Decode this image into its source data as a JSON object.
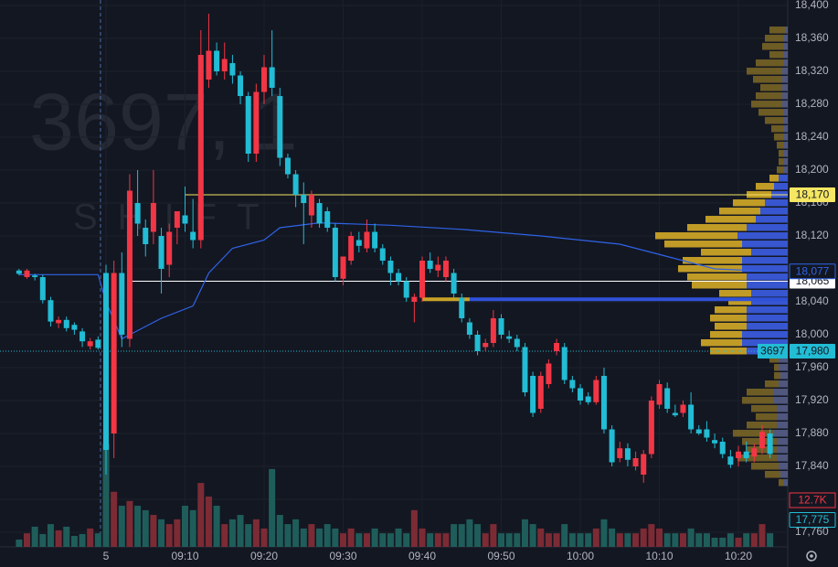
{
  "chart_data": {
    "type": "candlestick",
    "watermark": {
      "title": "3697, 1",
      "subtitle": "SHIFT"
    },
    "up_color": "#f23645",
    "down_color": "#22bcd4",
    "up_volume_color": "#7c2b35",
    "down_volume_color": "#1f5d5a",
    "xlim": [
      -2.41,
      97.24
    ],
    "ylim": [
      17742.2,
      18406.7
    ],
    "vlim": [
      0,
      148900
    ],
    "grid": true,
    "xticks": [
      {
        "value": 11,
        "label": "5"
      },
      {
        "value": 21,
        "label": "09:10"
      },
      {
        "value": 31,
        "label": "09:20"
      },
      {
        "value": 41,
        "label": "09:30"
      },
      {
        "value": 51,
        "label": "09:40"
      },
      {
        "value": 61,
        "label": "09:50"
      },
      {
        "value": 71,
        "label": "10:00"
      },
      {
        "value": 81,
        "label": "10:10"
      },
      {
        "value": 91,
        "label": "10:20"
      }
    ],
    "yticks": [
      {
        "value": 18400,
        "label": "18,400"
      },
      {
        "value": 18360,
        "label": "18,360"
      },
      {
        "value": 18320,
        "label": "18,320"
      },
      {
        "value": 18280,
        "label": "18,280"
      },
      {
        "value": 18240,
        "label": "18,240"
      },
      {
        "value": 18200,
        "label": "18,200"
      },
      {
        "value": 18160,
        "label": "18,160"
      },
      {
        "value": 18120,
        "label": "18,120"
      },
      {
        "value": 18080,
        "label": "18,080"
      },
      {
        "value": 18040,
        "label": "18,040"
      },
      {
        "value": 18000,
        "label": "18,000"
      },
      {
        "value": 17960,
        "label": "17,960"
      },
      {
        "value": 17920,
        "label": "17,920"
      },
      {
        "value": 17880,
        "label": "17,880"
      },
      {
        "value": 17840,
        "label": "17,840"
      },
      {
        "value": 17800,
        "label": "17,800"
      },
      {
        "value": 17760,
        "label": "17,760"
      }
    ],
    "session_break": 10.3,
    "candles": [
      [
        18078,
        18080,
        18072,
        18074,
        2000
      ],
      [
        18070,
        18080,
        18068,
        18078,
        3700
      ],
      [
        18072,
        18074,
        18066,
        18070,
        5500
      ],
      [
        18070,
        18073,
        18038,
        18042,
        3500
      ],
      [
        18042,
        18046,
        18010,
        18016,
        6200
      ],
      [
        18014,
        18022,
        18008,
        18018,
        4500
      ],
      [
        18018,
        18022,
        18004,
        18008,
        5500
      ],
      [
        18012,
        18015,
        18000,
        18006,
        3000
      ],
      [
        18004,
        18008,
        17985,
        17992,
        3500
      ],
      [
        17986,
        17996,
        17982,
        17992,
        5000
      ],
      [
        17994,
        17998,
        17982,
        17984,
        3700
      ],
      [
        18075,
        18085,
        17830,
        17860,
        28100
      ],
      [
        17880,
        18090,
        17850,
        18075,
        15000
      ],
      [
        18075,
        18100,
        17985,
        18000,
        11200
      ],
      [
        17995,
        18195,
        17985,
        18175,
        12500
      ],
      [
        18160,
        18200,
        18120,
        18135,
        11200
      ],
      [
        18130,
        18140,
        18095,
        18110,
        10000
      ],
      [
        18125,
        18200,
        18110,
        18160,
        8700
      ],
      [
        18120,
        18130,
        18050,
        18080,
        7500
      ],
      [
        18085,
        18135,
        18070,
        18125,
        6200
      ],
      [
        18130,
        18150,
        18110,
        18150,
        7500
      ],
      [
        18145,
        18180,
        18125,
        18135,
        11200
      ],
      [
        18125,
        18165,
        18105,
        18115,
        10000
      ],
      [
        18115,
        18370,
        18105,
        18340,
        17400
      ],
      [
        18310,
        18390,
        18300,
        18345,
        13700
      ],
      [
        18345,
        18355,
        18315,
        18320,
        11200
      ],
      [
        18320,
        18355,
        18310,
        18335,
        6200
      ],
      [
        18330,
        18340,
        18305,
        18315,
        7500
      ],
      [
        18315,
        18320,
        18280,
        18290,
        8700
      ],
      [
        18290,
        18295,
        18210,
        18220,
        6200
      ],
      [
        18220,
        18305,
        18210,
        18295,
        7500
      ],
      [
        18295,
        18340,
        18280,
        18325,
        5000
      ],
      [
        18325,
        18370,
        18290,
        18300,
        21200
      ],
      [
        18290,
        18300,
        18205,
        18215,
        8700
      ],
      [
        18215,
        18220,
        18190,
        18195,
        6200
      ],
      [
        18195,
        18200,
        18155,
        18170,
        7500
      ],
      [
        18170,
        18185,
        18110,
        18160,
        5000
      ],
      [
        18145,
        18175,
        18130,
        18170,
        6200
      ],
      [
        18160,
        18165,
        18130,
        18135,
        5000
      ],
      [
        18150,
        18155,
        18125,
        18130,
        6200
      ],
      [
        18130,
        18135,
        18065,
        18070,
        5000
      ],
      [
        18068,
        18095,
        18060,
        18095,
        3700
      ],
      [
        18090,
        18125,
        18085,
        18120,
        5000
      ],
      [
        18115,
        18125,
        18100,
        18108,
        3700
      ],
      [
        18105,
        18140,
        18100,
        18125,
        3700
      ],
      [
        18125,
        18135,
        18100,
        18105,
        5000
      ],
      [
        18105,
        18110,
        18085,
        18090,
        3700
      ],
      [
        18090,
        18095,
        18060,
        18075,
        3700
      ],
      [
        18075,
        18080,
        18060,
        18065,
        5000
      ],
      [
        18065,
        18070,
        18040,
        18045,
        3700
      ],
      [
        18040,
        18050,
        18015,
        18046,
        10000
      ],
      [
        18045,
        18095,
        18040,
        18090,
        5000
      ],
      [
        18090,
        18100,
        18075,
        18080,
        3700
      ],
      [
        18078,
        18095,
        18070,
        18085,
        3700
      ],
      [
        18070,
        18095,
        18065,
        18090,
        3700
      ],
      [
        18075,
        18080,
        18045,
        18050,
        6200
      ],
      [
        18045,
        18050,
        18015,
        18020,
        6200
      ],
      [
        18015,
        18020,
        17995,
        18000,
        7500
      ],
      [
        18000,
        18005,
        17975,
        17980,
        6200
      ],
      [
        17985,
        17995,
        17980,
        17990,
        3700
      ],
      [
        17990,
        18030,
        17985,
        18020,
        6200
      ],
      [
        18020,
        18025,
        17995,
        18000,
        3700
      ],
      [
        17998,
        18005,
        17990,
        17995,
        3700
      ],
      [
        17995,
        18000,
        17980,
        17985,
        3700
      ],
      [
        17985,
        17990,
        17925,
        17930,
        7500
      ],
      [
        17950,
        17955,
        17900,
        17905,
        6200
      ],
      [
        17910,
        17955,
        17905,
        17950,
        5000
      ],
      [
        17940,
        17970,
        17935,
        17965,
        3700
      ],
      [
        17980,
        17995,
        17975,
        17990,
        3700
      ],
      [
        17985,
        17990,
        17940,
        17945,
        6200
      ],
      [
        17945,
        17950,
        17930,
        17935,
        3700
      ],
      [
        17935,
        17940,
        17915,
        17920,
        3700
      ],
      [
        17925,
        17930,
        17915,
        17918,
        3700
      ],
      [
        17918,
        17950,
        17915,
        17945,
        5000
      ],
      [
        17950,
        17960,
        17880,
        17885,
        7500
      ],
      [
        17885,
        17890,
        17840,
        17845,
        5000
      ],
      [
        17850,
        17870,
        17845,
        17862,
        3700
      ],
      [
        17862,
        17868,
        17840,
        17848,
        3700
      ],
      [
        17840,
        17858,
        17835,
        17850,
        3700
      ],
      [
        17830,
        17860,
        17820,
        17855,
        5000
      ],
      [
        17855,
        17925,
        17850,
        17920,
        6200
      ],
      [
        17915,
        17945,
        17910,
        17940,
        5000
      ],
      [
        17935,
        17942,
        17905,
        17910,
        3700
      ],
      [
        17905,
        17915,
        17900,
        17902,
        3700
      ],
      [
        17905,
        17920,
        17900,
        17915,
        3700
      ],
      [
        17915,
        17930,
        17880,
        17885,
        5000
      ],
      [
        17885,
        17890,
        17878,
        17880,
        3700
      ],
      [
        17885,
        17895,
        17870,
        17875,
        3700
      ],
      [
        17872,
        17880,
        17862,
        17868,
        2500
      ],
      [
        17870,
        17875,
        17850,
        17855,
        2500
      ],
      [
        17852,
        17860,
        17838,
        17842,
        3700
      ],
      [
        17850,
        17865,
        17840,
        17858,
        2500
      ],
      [
        17858,
        17870,
        17845,
        17850,
        3700
      ],
      [
        17852,
        17868,
        17845,
        17862,
        3700
      ],
      [
        17862,
        17890,
        17855,
        17882,
        6200
      ],
      [
        17880,
        17885,
        17850,
        17855,
        3700
      ]
    ],
    "vwap": {
      "color": "#2f63e8",
      "x": [
        0,
        10,
        11,
        13,
        15,
        18,
        22,
        24,
        27,
        31,
        33,
        38,
        47,
        56,
        66,
        76,
        82,
        88,
        95
      ],
      "values": [
        18073,
        18073,
        18040,
        17995,
        18005,
        18020,
        18035,
        18075,
        18105,
        18115,
        18130,
        18136,
        18133,
        18128,
        18120,
        18110,
        18095,
        18080,
        18077
      ]
    },
    "volume_profile": {
      "up_color": "#2f52d9",
      "down_color": "#c9a227",
      "value_area": [
        17975,
        18195
      ],
      "xlim": [
        0,
        150
      ],
      "prices": [
        18370,
        18360,
        18350,
        18340,
        18330,
        18320,
        18310,
        18300,
        18290,
        18280,
        18270,
        18260,
        18250,
        18240,
        18230,
        18220,
        18210,
        18200,
        18190,
        18180,
        18170,
        18160,
        18150,
        18140,
        18130,
        18120,
        18110,
        18100,
        18090,
        18080,
        18070,
        18060,
        18050,
        18040,
        18030,
        18020,
        18010,
        18000,
        17990,
        17980,
        17970,
        17960,
        17950,
        17940,
        17930,
        17920,
        17910,
        17900,
        17890,
        17880,
        17870,
        17860,
        17850,
        17840,
        17830,
        17820
      ],
      "total": [
        20,
        25,
        28,
        20,
        35,
        45,
        38,
        30,
        35,
        40,
        32,
        25,
        18,
        15,
        12,
        10,
        10,
        12,
        20,
        35,
        45,
        60,
        75,
        90,
        110,
        145,
        135,
        95,
        115,
        120,
        110,
        105,
        75,
        65,
        80,
        85,
        80,
        85,
        95,
        85,
        20,
        15,
        15,
        25,
        45,
        50,
        40,
        35,
        45,
        60,
        50,
        45,
        55,
        40,
        25,
        10
      ],
      "up": [
        3,
        5,
        5,
        5,
        5,
        6,
        6,
        6,
        6,
        6,
        5,
        5,
        5,
        5,
        5,
        5,
        5,
        5,
        10,
        15,
        18,
        25,
        30,
        35,
        45,
        55,
        50,
        40,
        50,
        50,
        45,
        45,
        40,
        40,
        45,
        45,
        45,
        50,
        50,
        45,
        10,
        10,
        8,
        10,
        15,
        15,
        12,
        12,
        12,
        15,
        12,
        12,
        12,
        10,
        8,
        5
      ]
    },
    "levels": [
      {
        "value": 18170,
        "label": "18,170",
        "color": "#f5e663",
        "from": 21,
        "width": 1
      },
      {
        "value": 18065,
        "label": "18,065",
        "color": "#ffffff",
        "from": 13.8,
        "width": 1
      },
      {
        "value": 18043,
        "color": "#2f52d9",
        "from": 57,
        "width": 4
      },
      {
        "value": 18043,
        "color": "#c9a227",
        "from": 51,
        "to": 57,
        "width": 4
      }
    ],
    "vwap_label": {
      "value": 18077,
      "label": "18,077"
    },
    "current_price": {
      "value": 17980,
      "label": "17,980",
      "tag": "3697",
      "color": "#22bcd4"
    },
    "volume_label": {
      "value": 12700,
      "label": "12.7K",
      "color": "#f23645"
    },
    "low_label": {
      "value": 17775,
      "label": "17,775",
      "color": "#22bcd4"
    }
  }
}
